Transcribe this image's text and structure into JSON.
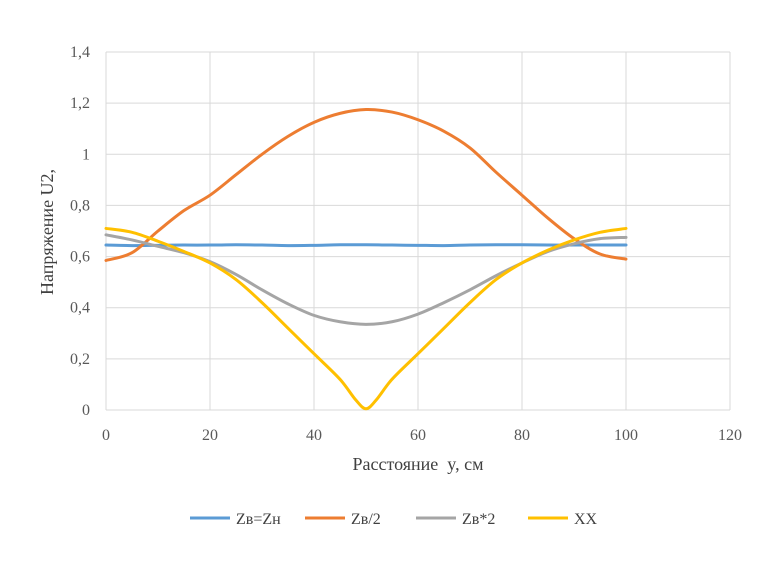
{
  "chart_data": {
    "type": "line",
    "title": "",
    "xlabel": "Расстояние  y, см",
    "ylabel": "Напряжение U2,",
    "xlim": [
      0,
      120
    ],
    "ylim": [
      0,
      1.4
    ],
    "xticks": [
      "0",
      "20",
      "40",
      "60",
      "80",
      "100",
      "120"
    ],
    "yticks": [
      "0",
      "0,2",
      "0,4",
      "0,6",
      "0,8",
      "1",
      "1,2",
      "1,4"
    ],
    "grid": true,
    "legend_position": "bottom",
    "series": [
      {
        "name": "Zв=Zн",
        "color": "#5B9BD5",
        "points": [
          [
            0,
            0.645
          ],
          [
            5,
            0.643
          ],
          [
            10,
            0.644
          ],
          [
            15,
            0.645
          ],
          [
            20,
            0.645
          ],
          [
            25,
            0.646
          ],
          [
            30,
            0.645
          ],
          [
            35,
            0.643
          ],
          [
            40,
            0.644
          ],
          [
            45,
            0.646
          ],
          [
            50,
            0.646
          ],
          [
            55,
            0.645
          ],
          [
            60,
            0.644
          ],
          [
            65,
            0.643
          ],
          [
            70,
            0.645
          ],
          [
            75,
            0.646
          ],
          [
            80,
            0.646
          ],
          [
            85,
            0.645
          ],
          [
            90,
            0.645
          ],
          [
            95,
            0.645
          ],
          [
            100,
            0.645
          ]
        ]
      },
      {
        "name": "Zв/2",
        "color": "#ED7D31",
        "points": [
          [
            0,
            0.585
          ],
          [
            5,
            0.615
          ],
          [
            10,
            0.7
          ],
          [
            15,
            0.78
          ],
          [
            20,
            0.84
          ],
          [
            25,
            0.92
          ],
          [
            30,
            1.0
          ],
          [
            35,
            1.07
          ],
          [
            40,
            1.125
          ],
          [
            45,
            1.16
          ],
          [
            50,
            1.175
          ],
          [
            55,
            1.165
          ],
          [
            60,
            1.135
          ],
          [
            65,
            1.09
          ],
          [
            70,
            1.025
          ],
          [
            75,
            0.93
          ],
          [
            80,
            0.84
          ],
          [
            85,
            0.75
          ],
          [
            90,
            0.67
          ],
          [
            95,
            0.61
          ],
          [
            100,
            0.59
          ]
        ]
      },
      {
        "name": "Zв*2",
        "color": "#A5A5A5",
        "points": [
          [
            0,
            0.685
          ],
          [
            5,
            0.665
          ],
          [
            10,
            0.64
          ],
          [
            15,
            0.615
          ],
          [
            20,
            0.58
          ],
          [
            25,
            0.53
          ],
          [
            30,
            0.47
          ],
          [
            35,
            0.415
          ],
          [
            40,
            0.37
          ],
          [
            45,
            0.345
          ],
          [
            50,
            0.335
          ],
          [
            55,
            0.345
          ],
          [
            60,
            0.375
          ],
          [
            65,
            0.42
          ],
          [
            70,
            0.47
          ],
          [
            75,
            0.525
          ],
          [
            80,
            0.575
          ],
          [
            85,
            0.62
          ],
          [
            90,
            0.65
          ],
          [
            95,
            0.67
          ],
          [
            100,
            0.675
          ]
        ]
      },
      {
        "name": "XX",
        "color": "#FFC000",
        "points": [
          [
            0,
            0.71
          ],
          [
            5,
            0.695
          ],
          [
            10,
            0.66
          ],
          [
            15,
            0.62
          ],
          [
            20,
            0.575
          ],
          [
            25,
            0.51
          ],
          [
            30,
            0.42
          ],
          [
            35,
            0.32
          ],
          [
            40,
            0.22
          ],
          [
            45,
            0.12
          ],
          [
            48,
            0.04
          ],
          [
            50,
            0.005
          ],
          [
            52,
            0.04
          ],
          [
            55,
            0.12
          ],
          [
            60,
            0.22
          ],
          [
            65,
            0.32
          ],
          [
            70,
            0.42
          ],
          [
            75,
            0.51
          ],
          [
            80,
            0.575
          ],
          [
            85,
            0.625
          ],
          [
            90,
            0.665
          ],
          [
            95,
            0.695
          ],
          [
            100,
            0.71
          ]
        ]
      }
    ]
  }
}
